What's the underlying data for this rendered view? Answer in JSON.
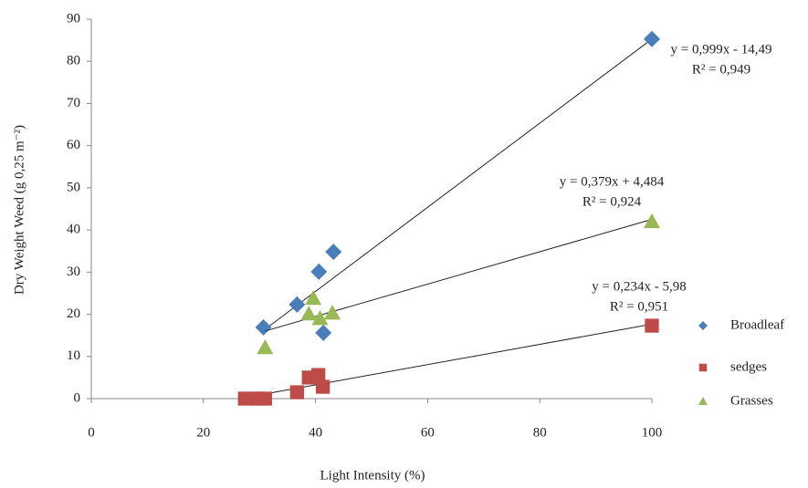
{
  "chart_data": {
    "type": "scatter",
    "x_label": "Light Intensity (%)",
    "y_label": "Dry Weight Weed  (g 0,25 m⁻²)",
    "xlim": [
      0,
      100
    ],
    "xticks": [
      0,
      20,
      40,
      60,
      80,
      100
    ],
    "ylim": [
      0,
      90
    ],
    "yticks": [
      0,
      10,
      20,
      30,
      40,
      50,
      60,
      70,
      80,
      90
    ],
    "grid": false,
    "legend": "right",
    "trendline": "linear",
    "series": [
      {
        "name": "Broadleaf",
        "color": "#4a7ebb",
        "marker": "diamond",
        "x": [
          30.7,
          36.7,
          40.6,
          43.2,
          41.4,
          100
        ],
        "values": [
          16.9,
          22.3,
          30.1,
          34.8,
          15.6,
          85.3
        ],
        "trendline": [
          "y = 0,999x - 14,49",
          "R² = 0,949"
        ]
      },
      {
        "name": "sedges",
        "color": "#be4b48",
        "marker": "square",
        "x": [
          27.4,
          29.7,
          31,
          36.7,
          38.8,
          40.5,
          41.3,
          100
        ],
        "values": [
          0,
          0,
          0,
          1.5,
          5,
          5.6,
          2.8,
          17.3
        ],
        "trendline": [
          "y = 0,234x - 5,98",
          "R² = 0,951"
        ]
      },
      {
        "name": "Grasses",
        "color": "#98b954",
        "marker": "triangle",
        "x": [
          31,
          39.6,
          38.8,
          40.8,
          43,
          100
        ],
        "values": [
          12.1,
          23.8,
          20.1,
          19,
          20.3,
          42
        ],
        "trendline": [
          "y = 0,379x + 4,484",
          "R² = 0,924"
        ]
      }
    ]
  }
}
